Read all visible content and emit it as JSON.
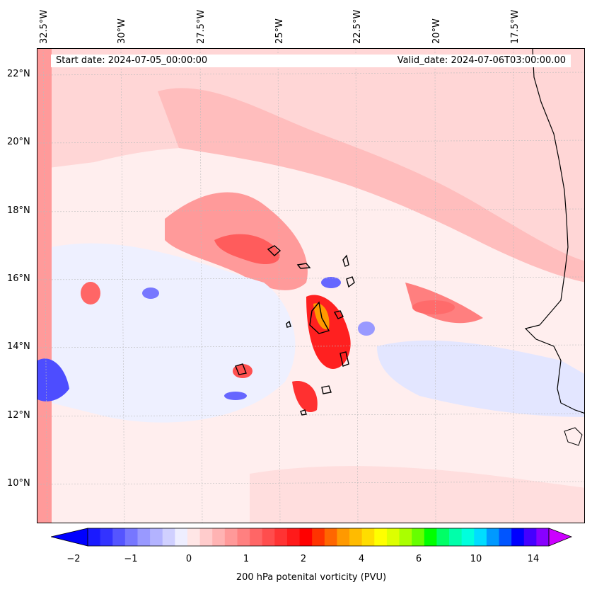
{
  "map": {
    "lon_labels": [
      "32.5°W",
      "30°W",
      "27.5°W",
      "25°W",
      "22.5°W",
      "20°W",
      "17.5°W"
    ],
    "lat_labels": [
      "22°N",
      "20°N",
      "18°N",
      "16°N",
      "14°N",
      "12°N",
      "10°N"
    ],
    "start_date": "Start date: 2024-07-05_00:00:00",
    "valid_date": "Valid_date: 2024-07-06T03:00:00.00"
  },
  "colorbar": {
    "ticks": [
      "−2",
      "−1",
      "0",
      "1",
      "2",
      "4",
      "6",
      "10",
      "14"
    ],
    "label": "200 hPa potenital vorticity (PVU)",
    "colors": [
      "#1a1aff",
      "#3333ff",
      "#5555ff",
      "#7777ff",
      "#9999ff",
      "#b3b3ff",
      "#d0d0ff",
      "#eeeeff",
      "#ffe6e6",
      "#ffcccc",
      "#ffb3b3",
      "#ff9999",
      "#ff8080",
      "#ff6666",
      "#ff4d4d",
      "#ff3333",
      "#ff1a1a",
      "#ff0000",
      "#ff3300",
      "#ff6600",
      "#ff9900",
      "#ffbb00",
      "#ffdd00",
      "#ffff00",
      "#ddff00",
      "#aaff00",
      "#66ff00",
      "#00ff00",
      "#00ff66",
      "#00ffaa",
      "#00ffdd",
      "#00ddff",
      "#0099ff",
      "#0055ff",
      "#0000ff",
      "#4400ff",
      "#8800ff"
    ],
    "end_low": "#0000ff",
    "end_high": "#cc00ff"
  }
}
